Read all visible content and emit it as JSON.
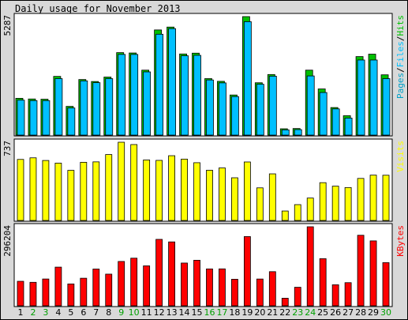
{
  "chart_data": {
    "type": "bar",
    "title": "Daily usage for November 2013",
    "categories": [
      "1",
      "2",
      "3",
      "4",
      "5",
      "6",
      "7",
      "8",
      "9",
      "10",
      "11",
      "12",
      "13",
      "14",
      "15",
      "16",
      "17",
      "18",
      "19",
      "20",
      "21",
      "22",
      "23",
      "24",
      "25",
      "26",
      "27",
      "28",
      "29",
      "30"
    ],
    "weekend_days": [
      "2",
      "3",
      "9",
      "10",
      "16",
      "17",
      "23",
      "24",
      "30"
    ],
    "panels": [
      {
        "key": "usage",
        "ymax_label": "5287",
        "legend": [
          "Pages",
          "/",
          "Files",
          "/",
          "Hits"
        ],
        "series": [
          {
            "name": "Hits",
            "values": [
              1642,
              1612,
              1602,
              2620,
              1282,
              2480,
              2392,
              2590,
              3680,
              3664,
              2898,
              4692,
              4820,
              3620,
              3656,
              2520,
              2400,
              1790,
              5287,
              2336,
              2703,
              282,
              294,
              2898,
              2060,
              1230,
              866,
              3504,
              3612,
              2690
            ]
          },
          {
            "name": "Files",
            "values": [
              1560,
              1540,
              1540,
              2520,
              1210,
              2420,
              2340,
              2520,
              3600,
              3600,
              2820,
              4500,
              4750,
              3540,
              3560,
              2460,
              2330,
              1720,
              5060,
              2270,
              2630,
              235,
              245,
              2640,
              1900,
              1170,
              760,
              3350,
              3350,
              2520
            ]
          },
          {
            "name": "Pages",
            "values": [
              1450,
              1430,
              1430,
              2330,
              1120,
              2200,
              2140,
              2300,
              3350,
              3350,
              2620,
              4200,
              4450,
              3300,
              3320,
              2250,
              2150,
              1590,
              4700,
              2080,
              2420,
              180,
              190,
              2400,
              1720,
              1080,
              650,
              3100,
              3150,
              2330
            ]
          }
        ]
      },
      {
        "key": "visits",
        "ymax_label": "737",
        "legend": [
          "Visits"
        ],
        "series": [
          {
            "name": "Visits",
            "values": [
              575,
              590,
              565,
              540,
              472,
              548,
              552,
              621,
              737,
              715,
              570,
              566,
              610,
              578,
              544,
              473,
              495,
              402,
              551,
              307,
              439,
              89,
              149,
              211,
              356,
              323,
              310,
              396,
              427,
              426
            ]
          }
        ]
      },
      {
        "key": "kbytes",
        "ymax_label": "296204",
        "legend": [
          "KBytes"
        ],
        "series": [
          {
            "name": "KBytes",
            "values": [
              91808,
              87985,
              100420,
              144920,
              81910,
              103305,
              137740,
              118620,
              166180,
              178490,
              149700,
              248990,
              239430,
              160180,
              170690,
              138170,
              138380,
              99430,
              259440,
              100310,
              127880,
              28370,
              69430,
              296204,
              176640,
              78790,
              86640,
              264380,
              243270,
              161780
            ]
          }
        ]
      }
    ]
  },
  "colors": {
    "background": "#d9d9d9",
    "plot": "#ffffff",
    "hits": "#00c000",
    "files": "#00c0ff",
    "pages": "#00a0c8",
    "visits": "#ffff00",
    "kbytes": "#ff0000",
    "weekend": "#00a000",
    "weekday": "#000000"
  }
}
